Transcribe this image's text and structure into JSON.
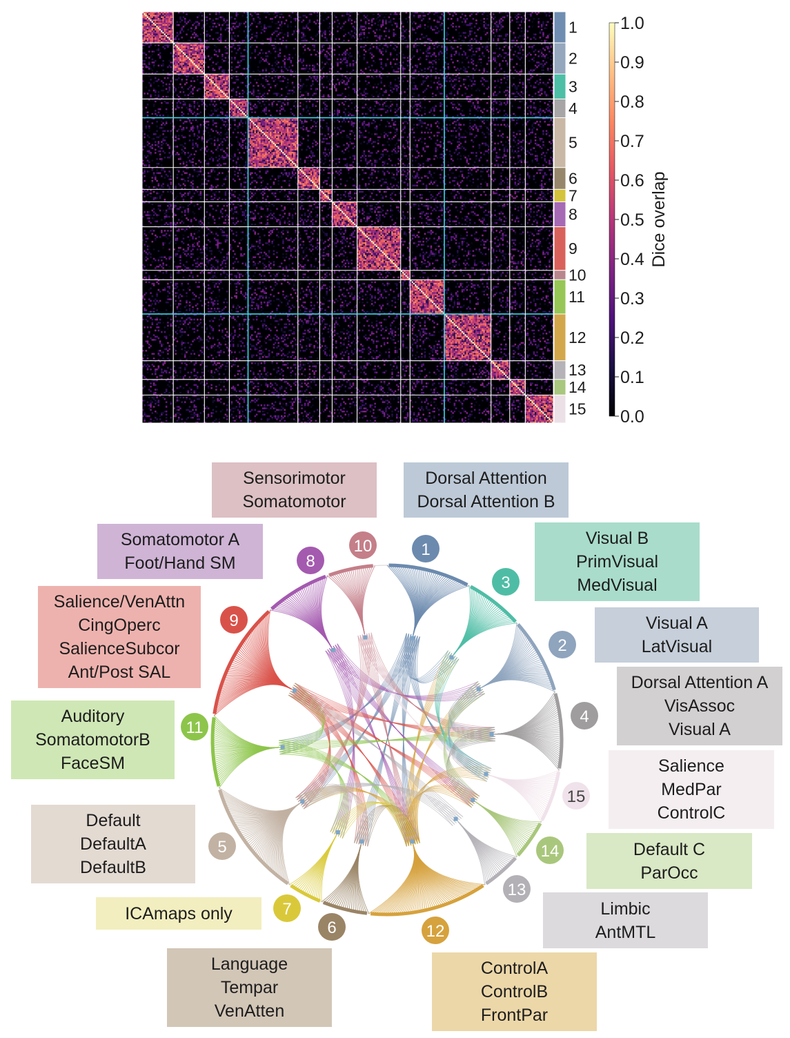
{
  "colorbar": {
    "label": "Dice overlap",
    "ticks": [
      "0.0",
      "0.1",
      "0.2",
      "0.3",
      "0.4",
      "0.5",
      "0.6",
      "0.7",
      "0.8",
      "0.9",
      "1.0"
    ],
    "range": [
      0,
      1
    ]
  },
  "chart_data": [
    {
      "type": "heatmap",
      "title": "",
      "value_label": "Dice overlap",
      "vlim": [
        0,
        1
      ],
      "colormap": "magma",
      "grid": true,
      "modules": [
        {
          "id": "1",
          "count": 20,
          "color": "#6f8db0"
        },
        {
          "id": "2",
          "count": 20,
          "color": "#94a7bd"
        },
        {
          "id": "3",
          "count": 16,
          "color": "#4dbfa6"
        },
        {
          "id": "4",
          "count": 12,
          "color": "#a8a5a6"
        },
        {
          "id": "5",
          "count": 32,
          "color": "#c9b8a6"
        },
        {
          "id": "6",
          "count": 14,
          "color": "#96866b"
        },
        {
          "id": "7",
          "count": 8,
          "color": "#d4c33c"
        },
        {
          "id": "8",
          "count": 16,
          "color": "#a66ab4"
        },
        {
          "id": "9",
          "count": 28,
          "color": "#d8625b"
        },
        {
          "id": "10",
          "count": 6,
          "color": "#b8868d"
        },
        {
          "id": "11",
          "count": 22,
          "color": "#97c657"
        },
        {
          "id": "12",
          "count": 30,
          "color": "#d2a74c"
        },
        {
          "id": "13",
          "count": 12,
          "color": "#b5b3b8"
        },
        {
          "id": "14",
          "count": 10,
          "color": "#a9c77e"
        },
        {
          "id": "15",
          "count": 18,
          "color": "#ece0e7"
        }
      ],
      "major_separators_after": [
        "4",
        "11"
      ],
      "within_module_overlap": [
        0.3,
        0.75
      ],
      "between_module_overlap": [
        0.0,
        0.3
      ]
    },
    {
      "type": "chord",
      "title": "",
      "nodes": [
        {
          "id": "1",
          "color": "#6b8aae",
          "text_color": "#ffffff"
        },
        {
          "id": "3",
          "color": "#4fbda5",
          "text_color": "#ffffff"
        },
        {
          "id": "2",
          "color": "#8fa4bd",
          "text_color": "#ffffff"
        },
        {
          "id": "4",
          "color": "#a09d9e",
          "text_color": "#ffffff"
        },
        {
          "id": "15",
          "color": "#f0e2ea",
          "text_color": "#444444"
        },
        {
          "id": "14",
          "color": "#a9c77c",
          "text_color": "#ffffff"
        },
        {
          "id": "13",
          "color": "#b3b0b6",
          "text_color": "#ffffff"
        },
        {
          "id": "12",
          "color": "#d6a23d",
          "text_color": "#ffffff"
        },
        {
          "id": "6",
          "color": "#9a8466",
          "text_color": "#ffffff"
        },
        {
          "id": "7",
          "color": "#d9c93a",
          "text_color": "#ffffff"
        },
        {
          "id": "5",
          "color": "#c2b2a3",
          "text_color": "#ffffff"
        },
        {
          "id": "11",
          "color": "#8dc54b",
          "text_color": "#ffffff"
        },
        {
          "id": "9",
          "color": "#d9524a",
          "text_color": "#ffffff"
        },
        {
          "id": "8",
          "color": "#a45aaf",
          "text_color": "#ffffff"
        },
        {
          "id": "10",
          "color": "#c47f89",
          "text_color": "#ffffff"
        }
      ],
      "links": [
        [
          "1",
          "11"
        ],
        [
          "1",
          "12"
        ],
        [
          "1",
          "6"
        ],
        [
          "1",
          "5"
        ],
        [
          "1",
          "3"
        ],
        [
          "1",
          "15"
        ],
        [
          "8",
          "12"
        ],
        [
          "8",
          "7"
        ],
        [
          "8",
          "14"
        ],
        [
          "8",
          "2"
        ],
        [
          "9",
          "12"
        ],
        [
          "9",
          "6"
        ],
        [
          "9",
          "5"
        ],
        [
          "9",
          "4"
        ],
        [
          "9",
          "14"
        ],
        [
          "10",
          "12"
        ],
        [
          "10",
          "4"
        ],
        [
          "10",
          "5"
        ],
        [
          "11",
          "12"
        ],
        [
          "11",
          "7"
        ],
        [
          "11",
          "9"
        ],
        [
          "11",
          "4"
        ],
        [
          "12",
          "5"
        ],
        [
          "12",
          "15"
        ],
        [
          "12",
          "14"
        ],
        [
          "12",
          "2"
        ],
        [
          "12",
          "3"
        ],
        [
          "2",
          "4"
        ],
        [
          "2",
          "15"
        ],
        [
          "3",
          "15"
        ],
        [
          "4",
          "15"
        ],
        [
          "4",
          "14"
        ],
        [
          "5",
          "7"
        ],
        [
          "5",
          "6"
        ],
        [
          "6",
          "12"
        ],
        [
          "7",
          "12"
        ],
        [
          "13",
          "9"
        ],
        [
          "13",
          "5"
        ],
        [
          "14",
          "2"
        ],
        [
          "15",
          "10"
        ]
      ],
      "labels": [
        {
          "module": "10",
          "lines": [
            "Sensorimotor",
            "Somatomotor"
          ],
          "bg": "#dcc0c4"
        },
        {
          "module": "1",
          "lines": [
            "Dorsal Attention",
            "Dorsal Attention B"
          ],
          "bg": "#bdc9d7"
        },
        {
          "module": "8",
          "lines": [
            "Somatomotor A",
            "Foot/Hand SM"
          ],
          "bg": "#cfb4d6"
        },
        {
          "module": "3",
          "lines": [
            "Visual B",
            "PrimVisual",
            "MedVisual"
          ],
          "bg": "#a9dccb"
        },
        {
          "module": "9",
          "lines": [
            "Salience/VenAttn",
            "CingOperc",
            "SalienceSubcor",
            "Ant/Post SAL"
          ],
          "bg": "#eeb2ae"
        },
        {
          "module": "2",
          "lines": [
            "Visual A",
            "LatVisual"
          ],
          "bg": "#c6cfda"
        },
        {
          "module": "4",
          "lines": [
            "Dorsal Attention A",
            "VisAssoc",
            "Visual A"
          ],
          "bg": "#d3d0d1"
        },
        {
          "module": "11",
          "lines": [
            "Auditory",
            "SomatomotorB",
            "FaceSM"
          ],
          "bg": "#cfe7b5"
        },
        {
          "module": "15",
          "lines": [
            "Salience",
            "MedPar",
            "ControlC"
          ],
          "bg": "#f4eef1"
        },
        {
          "module": "5",
          "lines": [
            "Default",
            "DefaultA",
            "DefaultB"
          ],
          "bg": "#e3dad2"
        },
        {
          "module": "14",
          "lines": [
            "Default C",
            "ParOcc"
          ],
          "bg": "#d9e8c5"
        },
        {
          "module": "7",
          "lines": [
            "ICAmaps only"
          ],
          "bg": "#f2eebf"
        },
        {
          "module": "13",
          "lines": [
            "Limbic",
            "AntMTL"
          ],
          "bg": "#dcdadd"
        },
        {
          "module": "6",
          "lines": [
            "Language",
            "Tempar",
            "VenAtten"
          ],
          "bg": "#d2c6b7"
        },
        {
          "module": "12",
          "lines": [
            "ControlA",
            "ControlB",
            "FrontPar"
          ],
          "bg": "#ecd7a9"
        }
      ]
    }
  ]
}
